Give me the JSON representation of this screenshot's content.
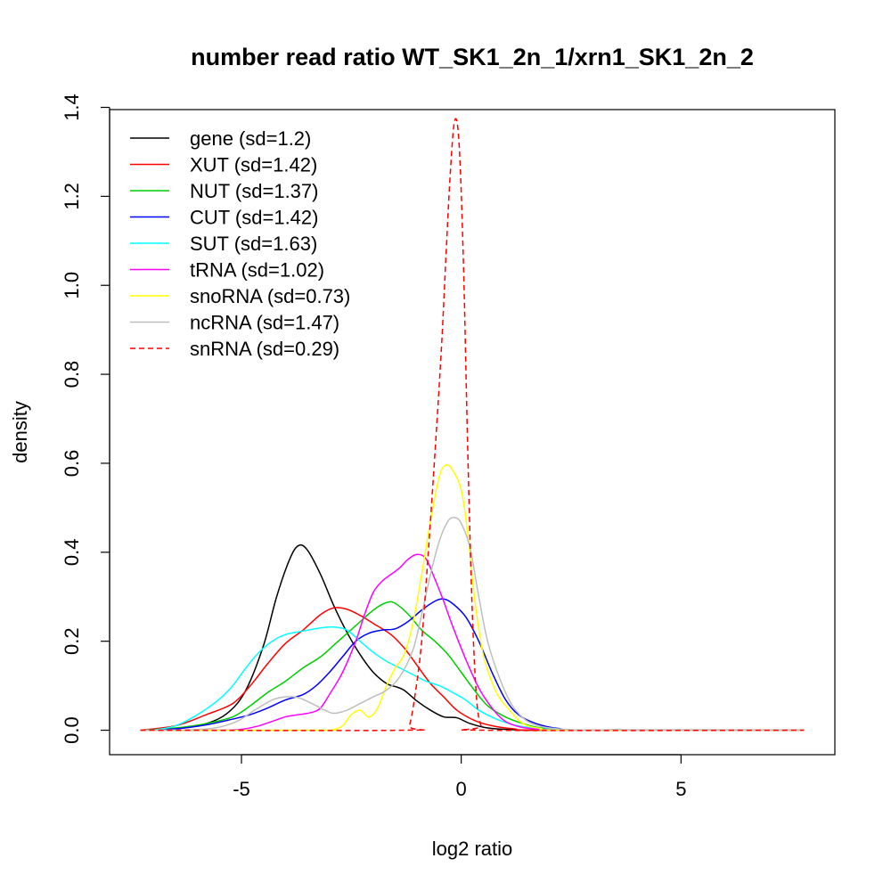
{
  "chart_data": {
    "type": "line",
    "title": "number read ratio WT_SK1_2n_1/xrn1_SK1_2n_2",
    "xlabel": "log2 ratio",
    "ylabel": "density",
    "xlim": [
      -8.0,
      8.5
    ],
    "ylim": [
      -0.055,
      1.395
    ],
    "xticks": [
      -5,
      0,
      5
    ],
    "xtick_labels": [
      "-5",
      "0",
      "5"
    ],
    "yticks": [
      0.0,
      0.2,
      0.4,
      0.6,
      0.8,
      1.0,
      1.2,
      1.4
    ],
    "ytick_labels": [
      "0.0",
      "0.2",
      "0.4",
      "0.6",
      "0.8",
      "1.0",
      "1.2",
      "1.4"
    ],
    "grid": false,
    "legend_position": "top-left",
    "series": [
      {
        "name": "gene (sd=1.2)",
        "color": "#000000",
        "dash": false,
        "points": [
          [
            -7.3,
            0
          ],
          [
            -6.5,
            0.003
          ],
          [
            -5.8,
            0.015
          ],
          [
            -5.3,
            0.04
          ],
          [
            -4.9,
            0.09
          ],
          [
            -4.5,
            0.19
          ],
          [
            -4.2,
            0.3
          ],
          [
            -3.9,
            0.385
          ],
          [
            -3.7,
            0.415
          ],
          [
            -3.5,
            0.405
          ],
          [
            -3.2,
            0.35
          ],
          [
            -2.9,
            0.28
          ],
          [
            -2.6,
            0.22
          ],
          [
            -2.3,
            0.17
          ],
          [
            -2.0,
            0.13
          ],
          [
            -1.7,
            0.105
          ],
          [
            -1.5,
            0.098
          ],
          [
            -1.3,
            0.09
          ],
          [
            -1.0,
            0.065
          ],
          [
            -0.7,
            0.045
          ],
          [
            -0.4,
            0.03
          ],
          [
            -0.1,
            0.028
          ],
          [
            0.2,
            0.015
          ],
          [
            0.6,
            0.005
          ],
          [
            1.2,
            0.001
          ],
          [
            2.0,
            0
          ],
          [
            7.8,
            0
          ]
        ]
      },
      {
        "name": "XUT (sd=1.42)",
        "color": "#ff0000",
        "dash": false,
        "points": [
          [
            -7.3,
            0
          ],
          [
            -6.5,
            0.01
          ],
          [
            -5.8,
            0.035
          ],
          [
            -5.2,
            0.06
          ],
          [
            -4.8,
            0.1
          ],
          [
            -4.4,
            0.15
          ],
          [
            -4.0,
            0.195
          ],
          [
            -3.6,
            0.225
          ],
          [
            -3.2,
            0.26
          ],
          [
            -2.9,
            0.275
          ],
          [
            -2.6,
            0.272
          ],
          [
            -2.3,
            0.258
          ],
          [
            -2.0,
            0.24
          ],
          [
            -1.6,
            0.215
          ],
          [
            -1.3,
            0.185
          ],
          [
            -1.0,
            0.145
          ],
          [
            -0.7,
            0.105
          ],
          [
            -0.4,
            0.075
          ],
          [
            -0.1,
            0.045
          ],
          [
            0.3,
            0.022
          ],
          [
            0.7,
            0.01
          ],
          [
            1.2,
            0.003
          ],
          [
            2.0,
            0
          ],
          [
            7.8,
            0
          ]
        ]
      },
      {
        "name": "NUT (sd=1.37)",
        "color": "#00cd00",
        "dash": false,
        "points": [
          [
            -7.3,
            0
          ],
          [
            -6.5,
            0.005
          ],
          [
            -5.8,
            0.015
          ],
          [
            -5.2,
            0.03
          ],
          [
            -4.8,
            0.055
          ],
          [
            -4.4,
            0.085
          ],
          [
            -4.0,
            0.11
          ],
          [
            -3.6,
            0.14
          ],
          [
            -3.2,
            0.165
          ],
          [
            -2.8,
            0.2
          ],
          [
            -2.4,
            0.235
          ],
          [
            -2.0,
            0.27
          ],
          [
            -1.7,
            0.287
          ],
          [
            -1.5,
            0.285
          ],
          [
            -1.2,
            0.26
          ],
          [
            -0.9,
            0.225
          ],
          [
            -0.6,
            0.2
          ],
          [
            -0.3,
            0.17
          ],
          [
            0.0,
            0.13
          ],
          [
            0.3,
            0.09
          ],
          [
            0.6,
            0.055
          ],
          [
            1.0,
            0.03
          ],
          [
            1.4,
            0.015
          ],
          [
            1.8,
            0.005
          ],
          [
            2.4,
            0.001
          ],
          [
            3.0,
            0
          ],
          [
            7.8,
            0
          ]
        ]
      },
      {
        "name": "CUT (sd=1.42)",
        "color": "#0000ff",
        "dash": false,
        "points": [
          [
            -7.3,
            0
          ],
          [
            -6.5,
            0.003
          ],
          [
            -5.8,
            0.012
          ],
          [
            -5.2,
            0.025
          ],
          [
            -4.8,
            0.035
          ],
          [
            -4.4,
            0.05
          ],
          [
            -4.0,
            0.068
          ],
          [
            -3.6,
            0.08
          ],
          [
            -3.3,
            0.1
          ],
          [
            -3.0,
            0.13
          ],
          [
            -2.7,
            0.165
          ],
          [
            -2.4,
            0.2
          ],
          [
            -2.1,
            0.218
          ],
          [
            -1.8,
            0.225
          ],
          [
            -1.5,
            0.228
          ],
          [
            -1.2,
            0.245
          ],
          [
            -0.9,
            0.27
          ],
          [
            -0.6,
            0.29
          ],
          [
            -0.4,
            0.295
          ],
          [
            -0.2,
            0.285
          ],
          [
            0.1,
            0.255
          ],
          [
            0.4,
            0.2
          ],
          [
            0.7,
            0.13
          ],
          [
            1.0,
            0.07
          ],
          [
            1.3,
            0.035
          ],
          [
            1.7,
            0.015
          ],
          [
            2.2,
            0.004
          ],
          [
            3.0,
            0
          ],
          [
            7.8,
            0
          ]
        ]
      },
      {
        "name": "SUT (sd=1.63)",
        "color": "#00ffff",
        "dash": false,
        "points": [
          [
            -7.0,
            0
          ],
          [
            -6.5,
            0.01
          ],
          [
            -6.0,
            0.035
          ],
          [
            -5.5,
            0.07
          ],
          [
            -5.2,
            0.1
          ],
          [
            -4.9,
            0.14
          ],
          [
            -4.6,
            0.175
          ],
          [
            -4.3,
            0.2
          ],
          [
            -4.0,
            0.215
          ],
          [
            -3.6,
            0.223
          ],
          [
            -3.2,
            0.23
          ],
          [
            -2.9,
            0.232
          ],
          [
            -2.6,
            0.225
          ],
          [
            -2.3,
            0.2
          ],
          [
            -2.0,
            0.175
          ],
          [
            -1.7,
            0.155
          ],
          [
            -1.4,
            0.14
          ],
          [
            -1.1,
            0.125
          ],
          [
            -0.8,
            0.11
          ],
          [
            -0.5,
            0.1
          ],
          [
            -0.2,
            0.085
          ],
          [
            0.1,
            0.068
          ],
          [
            0.4,
            0.045
          ],
          [
            0.8,
            0.025
          ],
          [
            1.2,
            0.012
          ],
          [
            1.7,
            0.004
          ],
          [
            2.3,
            0.001
          ],
          [
            3.0,
            0
          ],
          [
            7.8,
            0
          ]
        ]
      },
      {
        "name": "tRNA (sd=1.02)",
        "color": "#ff00ff",
        "dash": false,
        "points": [
          [
            -7.0,
            0
          ],
          [
            -5.5,
            0
          ],
          [
            -5.0,
            0.002
          ],
          [
            -4.6,
            0.01
          ],
          [
            -4.3,
            0.02
          ],
          [
            -4.0,
            0.03
          ],
          [
            -3.7,
            0.035
          ],
          [
            -3.4,
            0.04
          ],
          [
            -3.2,
            0.05
          ],
          [
            -3.0,
            0.08
          ],
          [
            -2.7,
            0.13
          ],
          [
            -2.4,
            0.2
          ],
          [
            -2.2,
            0.26
          ],
          [
            -2.0,
            0.31
          ],
          [
            -1.8,
            0.335
          ],
          [
            -1.6,
            0.35
          ],
          [
            -1.4,
            0.365
          ],
          [
            -1.2,
            0.385
          ],
          [
            -1.0,
            0.395
          ],
          [
            -0.8,
            0.385
          ],
          [
            -0.6,
            0.34
          ],
          [
            -0.4,
            0.29
          ],
          [
            -0.2,
            0.235
          ],
          [
            0.1,
            0.16
          ],
          [
            0.4,
            0.095
          ],
          [
            0.7,
            0.05
          ],
          [
            1.0,
            0.02
          ],
          [
            1.4,
            0.006
          ],
          [
            2.0,
            0.001
          ],
          [
            2.5,
            0
          ],
          [
            7.8,
            0
          ]
        ]
      },
      {
        "name": "snoRNA (sd=0.73)",
        "color": "#ffff00",
        "dash": false,
        "points": [
          [
            -7.3,
            0
          ],
          [
            -3.2,
            0
          ],
          [
            -2.9,
            0.002
          ],
          [
            -2.7,
            0.01
          ],
          [
            -2.5,
            0.035
          ],
          [
            -2.3,
            0.045
          ],
          [
            -2.1,
            0.03
          ],
          [
            -1.9,
            0.05
          ],
          [
            -1.7,
            0.1
          ],
          [
            -1.5,
            0.14
          ],
          [
            -1.3,
            0.17
          ],
          [
            -1.1,
            0.24
          ],
          [
            -0.9,
            0.35
          ],
          [
            -0.7,
            0.47
          ],
          [
            -0.5,
            0.57
          ],
          [
            -0.35,
            0.596
          ],
          [
            -0.2,
            0.585
          ],
          [
            0.0,
            0.54
          ],
          [
            0.15,
            0.44
          ],
          [
            0.3,
            0.3
          ],
          [
            0.5,
            0.17
          ],
          [
            0.8,
            0.085
          ],
          [
            1.1,
            0.045
          ],
          [
            1.4,
            0.015
          ],
          [
            1.8,
            0.004
          ],
          [
            2.4,
            0
          ],
          [
            7.8,
            0
          ]
        ]
      },
      {
        "name": "ncRNA (sd=1.47)",
        "color": "#bebebe",
        "dash": false,
        "points": [
          [
            -7.3,
            0
          ],
          [
            -6.2,
            0.001
          ],
          [
            -5.6,
            0.005
          ],
          [
            -5.1,
            0.02
          ],
          [
            -4.7,
            0.045
          ],
          [
            -4.3,
            0.068
          ],
          [
            -4.0,
            0.075
          ],
          [
            -3.7,
            0.073
          ],
          [
            -3.4,
            0.06
          ],
          [
            -3.1,
            0.045
          ],
          [
            -2.9,
            0.038
          ],
          [
            -2.6,
            0.045
          ],
          [
            -2.3,
            0.06
          ],
          [
            -2.0,
            0.075
          ],
          [
            -1.7,
            0.09
          ],
          [
            -1.4,
            0.12
          ],
          [
            -1.1,
            0.18
          ],
          [
            -0.9,
            0.26
          ],
          [
            -0.7,
            0.35
          ],
          [
            -0.5,
            0.425
          ],
          [
            -0.3,
            0.47
          ],
          [
            -0.15,
            0.478
          ],
          [
            0.0,
            0.465
          ],
          [
            0.2,
            0.41
          ],
          [
            0.4,
            0.3
          ],
          [
            0.6,
            0.2
          ],
          [
            0.9,
            0.11
          ],
          [
            1.2,
            0.05
          ],
          [
            1.6,
            0.015
          ],
          [
            2.2,
            0.003
          ],
          [
            3.0,
            0
          ],
          [
            3.6,
            0.002
          ],
          [
            4.0,
            0
          ],
          [
            7.8,
            0
          ]
        ]
      },
      {
        "name": "snRNA (sd=0.29)",
        "color": "#ff0000",
        "dash": true,
        "points": [
          [
            -7.3,
            0
          ],
          [
            -1.3,
            0
          ],
          [
            -1.18,
            0.01
          ],
          [
            -1.05,
            0.08
          ],
          [
            -0.9,
            0.2
          ],
          [
            -0.75,
            0.4
          ],
          [
            -0.6,
            0.62
          ],
          [
            -0.45,
            0.86
          ],
          [
            -0.35,
            1.06
          ],
          [
            -0.25,
            1.25
          ],
          [
            -0.15,
            1.37
          ],
          [
            -0.05,
            1.32
          ],
          [
            0.05,
            1.05
          ],
          [
            0.15,
            0.62
          ],
          [
            0.25,
            0.27
          ],
          [
            0.35,
            0.07
          ],
          [
            0.45,
            0.01
          ],
          [
            0.55,
            0
          ],
          [
            7.8,
            0
          ]
        ]
      }
    ]
  }
}
